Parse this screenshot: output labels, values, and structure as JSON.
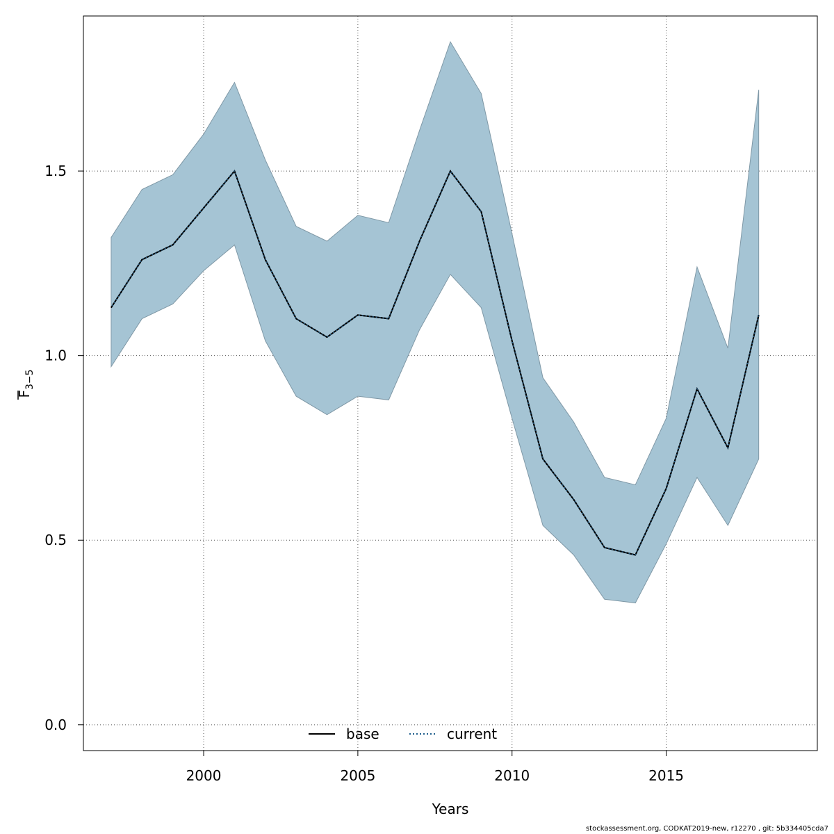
{
  "chart_data": {
    "type": "area",
    "xlabel": "Years",
    "ylabel_main": "F",
    "ylabel_sub": "3−5",
    "xlim": [
      1996.1,
      2019.9
    ],
    "ylim": [
      -0.07,
      1.92
    ],
    "x_ticks": [
      2000,
      2005,
      2010,
      2015
    ],
    "y_ticks": [
      0.0,
      0.5,
      1.0,
      1.5
    ],
    "y_tick_labels": [
      "0.0",
      "0.5",
      "1.0",
      "1.5"
    ],
    "grid": true,
    "legend_position": "bottom",
    "legend": [
      {
        "label": "base",
        "style": "solid",
        "color": "#000000"
      },
      {
        "label": "current",
        "style": "dotted",
        "color": "#1f5e8c"
      }
    ],
    "band_color": "#a5c4d4",
    "years": [
      1997,
      1998,
      1999,
      2000,
      2001,
      2002,
      2003,
      2004,
      2005,
      2006,
      2007,
      2008,
      2009,
      2010,
      2011,
      2012,
      2013,
      2014,
      2015,
      2016,
      2017,
      2018
    ],
    "series": [
      {
        "name": "base",
        "values": [
          1.13,
          1.26,
          1.3,
          1.4,
          1.5,
          1.26,
          1.1,
          1.05,
          1.11,
          1.1,
          1.31,
          1.5,
          1.39,
          1.04,
          0.72,
          0.61,
          0.48,
          0.46,
          0.64,
          0.91,
          0.75,
          1.11
        ]
      },
      {
        "name": "current",
        "values": [
          1.13,
          1.26,
          1.3,
          1.4,
          1.5,
          1.26,
          1.1,
          1.05,
          1.11,
          1.1,
          1.31,
          1.5,
          1.39,
          1.04,
          0.72,
          0.61,
          0.48,
          0.46,
          0.64,
          0.91,
          0.75,
          1.11
        ]
      }
    ],
    "upper": [
      1.32,
      1.45,
      1.49,
      1.6,
      1.74,
      1.53,
      1.35,
      1.31,
      1.38,
      1.36,
      1.61,
      1.85,
      1.71,
      1.33,
      0.94,
      0.82,
      0.67,
      0.65,
      0.83,
      1.24,
      1.02,
      1.72
    ],
    "lower": [
      0.97,
      1.1,
      1.14,
      1.23,
      1.3,
      1.04,
      0.89,
      0.84,
      0.89,
      0.88,
      1.07,
      1.22,
      1.13,
      0.83,
      0.54,
      0.46,
      0.34,
      0.33,
      0.49,
      0.67,
      0.54,
      0.72
    ]
  },
  "footer": "stockassessment.org, CODKAT2019-new, r12270 , git: 5b334405cda7"
}
